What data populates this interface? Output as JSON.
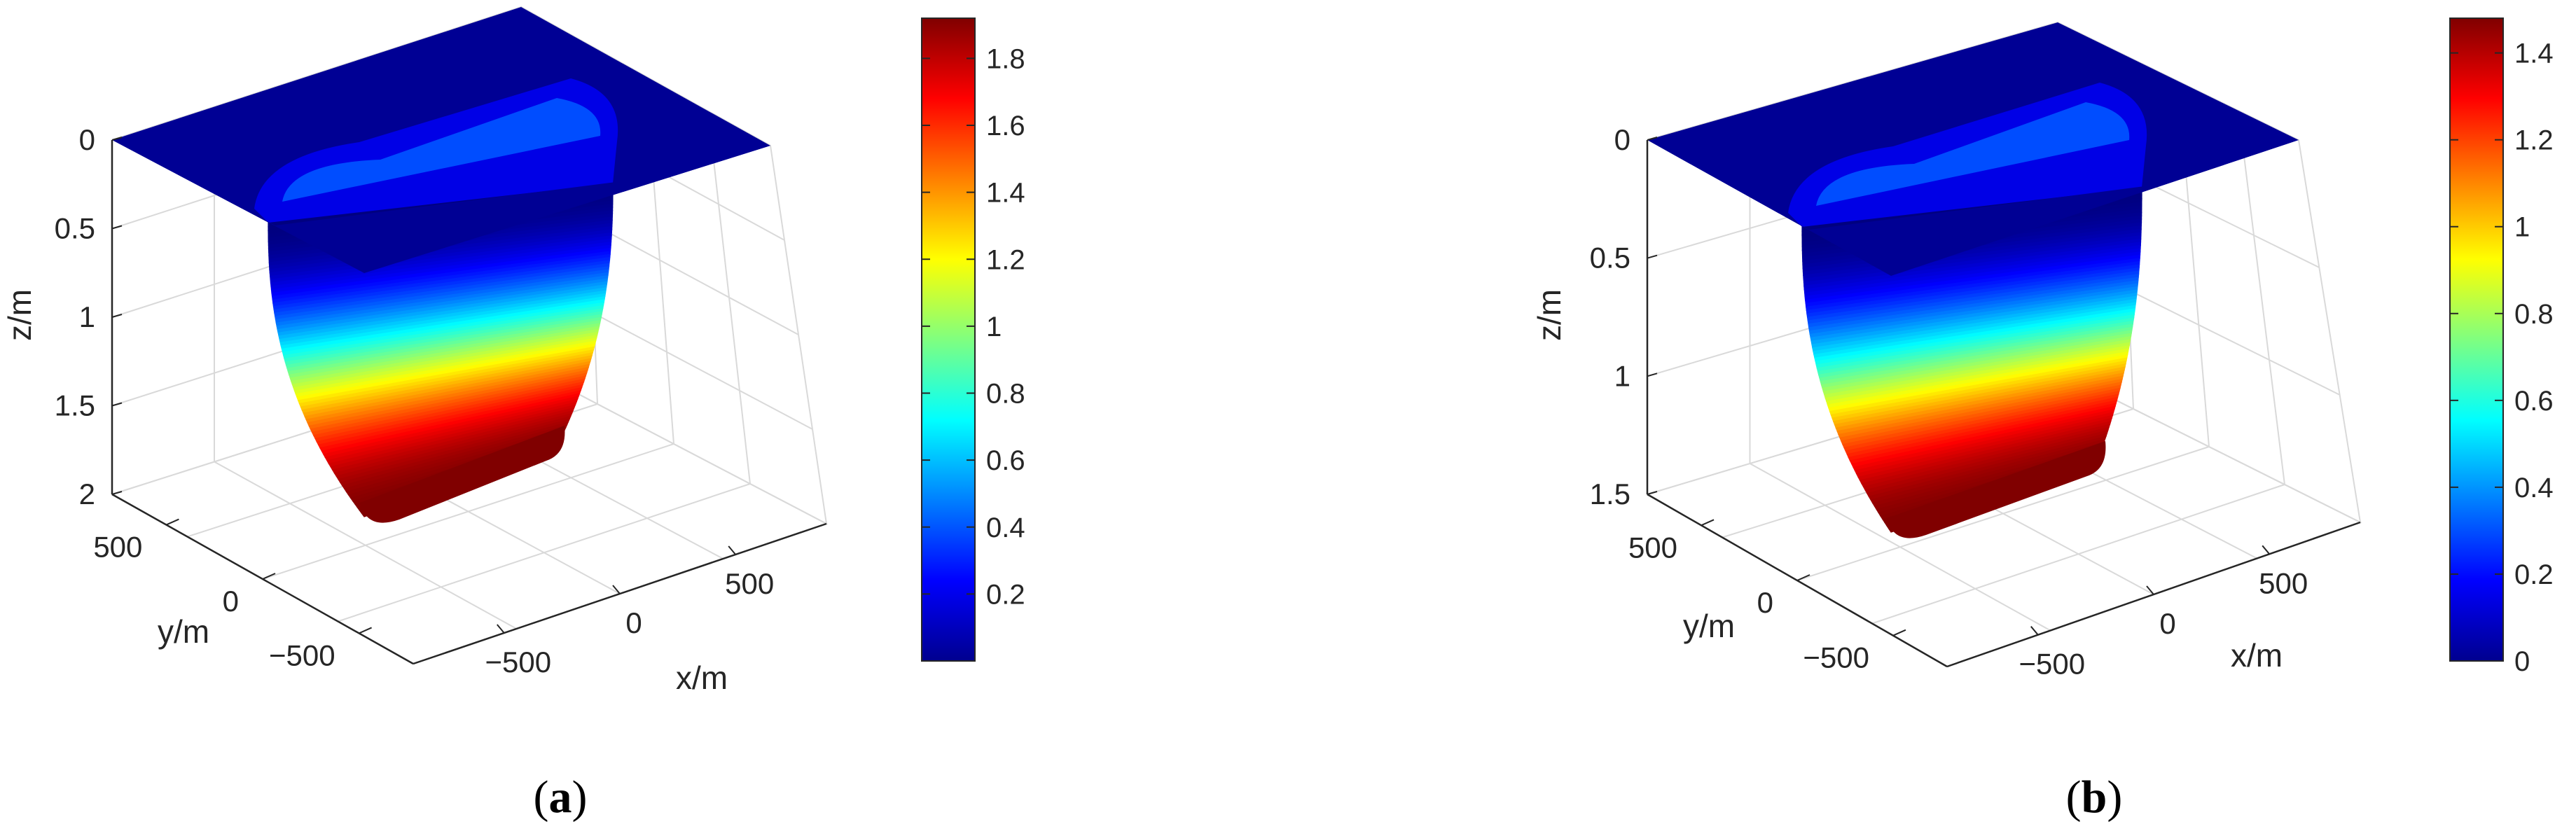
{
  "chart_data": [
    {
      "panel_label": "(a)",
      "panel_letter": "a",
      "type": "surface3d",
      "xlabel": "x/m",
      "ylabel": "y/m",
      "zlabel": "z/m",
      "x_ticks": [
        "−500",
        "0",
        "500"
      ],
      "y_ticks": [
        "−500",
        "0",
        "500"
      ],
      "z_ticks": [
        "0",
        "0.5",
        "1",
        "1.5",
        "2"
      ],
      "zlim": [
        0,
        2
      ],
      "z_reversed": true,
      "grid": true,
      "colormap": "jet",
      "surface": {
        "description_values": {
          "flat_top_depth": 0,
          "max_depth": 1.92,
          "basin_core_halfwidth_x": 520,
          "basin_core_halfwidth_y": 360,
          "extent_x": [
            -1000,
            1000
          ],
          "extent_y": [
            -800,
            800
          ]
        }
      },
      "colorbar": {
        "range": [
          0,
          1.92
        ],
        "ticks": [
          "0.2",
          "0.4",
          "0.6",
          "0.8",
          "1",
          "1.2",
          "1.4",
          "1.6",
          "1.8"
        ]
      }
    },
    {
      "panel_label": "(b)",
      "panel_letter": "b",
      "type": "surface3d",
      "xlabel": "x/m",
      "ylabel": "y/m",
      "zlabel": "z/m",
      "x_ticks": [
        "−500",
        "0",
        "500"
      ],
      "y_ticks": [
        "−500",
        "0",
        "500"
      ],
      "z_ticks": [
        "0",
        "0.5",
        "1",
        "1.5"
      ],
      "zlim": [
        0,
        1.5
      ],
      "z_reversed": true,
      "grid": true,
      "colormap": "jet",
      "surface": {
        "description_values": {
          "flat_top_depth": 0,
          "max_depth": 1.48,
          "basin_core_halfwidth_x": 520,
          "basin_core_halfwidth_y": 360,
          "extent_x": [
            -1000,
            1000
          ],
          "extent_y": [
            -800,
            800
          ]
        }
      },
      "colorbar": {
        "range": [
          0,
          1.48
        ],
        "ticks": [
          "0",
          "0.2",
          "0.4",
          "0.6",
          "0.8",
          "1",
          "1.2",
          "1.4"
        ]
      }
    }
  ],
  "colors": {
    "jet_stops": [
      "#00008f",
      "#0000ff",
      "#00ffff",
      "#ffff00",
      "#ff0000",
      "#800000"
    ]
  }
}
